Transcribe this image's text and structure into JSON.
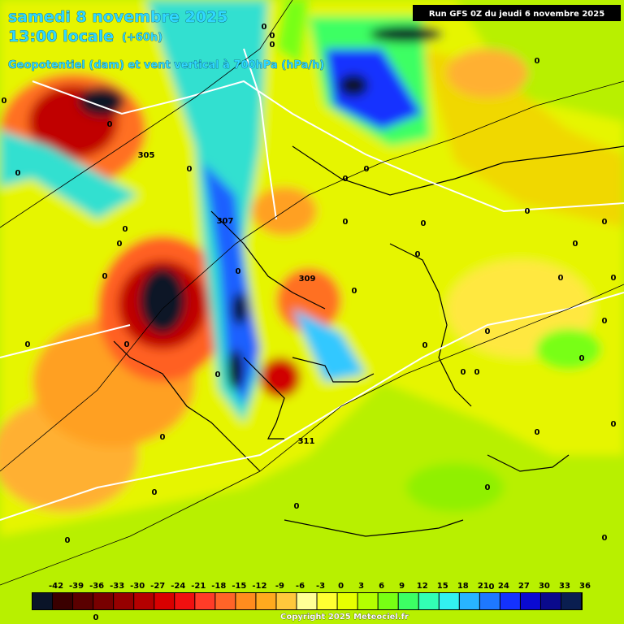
{
  "header": {
    "date": "samedi 8 novembre 2025",
    "time": "13:00 locale",
    "lead": "(+60h)",
    "field": "Geopotentiel (dam) et vent vertical à 700hPa (hPa/h)",
    "run": "Run GFS 0Z du jeudi 6 novembre 2025"
  },
  "map": {
    "labels": [
      "0",
      "0",
      "0",
      "0",
      "0",
      "0",
      "0",
      "0",
      "0",
      "0",
      "0",
      "0",
      "0",
      "0",
      "0",
      "0",
      "0",
      "0",
      "0",
      "0",
      "0",
      "0",
      "0",
      "0",
      "0",
      "0",
      "0",
      "0",
      "0",
      "0",
      "0",
      "0",
      "0",
      "0",
      "0",
      "0",
      "0",
      "0",
      "0",
      "0",
      "0",
      "0",
      "305",
      "307",
      "309",
      "311"
    ]
  },
  "legend": [
    {
      "value": -42,
      "color": "#0a1428"
    },
    {
      "value": -39,
      "color": "#3a0000"
    },
    {
      "value": -36,
      "color": "#5a0000"
    },
    {
      "value": -33,
      "color": "#780000"
    },
    {
      "value": -30,
      "color": "#960000"
    },
    {
      "value": -27,
      "color": "#b40000"
    },
    {
      "value": -24,
      "color": "#d80000"
    },
    {
      "value": -21,
      "color": "#f01010"
    },
    {
      "value": -18,
      "color": "#ff3c28"
    },
    {
      "value": -15,
      "color": "#ff6428"
    },
    {
      "value": -12,
      "color": "#ff8c1e"
    },
    {
      "value": -9,
      "color": "#ffaa1e"
    },
    {
      "value": -6,
      "color": "#ffc83c"
    },
    {
      "value": -3,
      "color": "#ffff96"
    },
    {
      "value": 0,
      "color": "#ffff32"
    },
    {
      "value": 3,
      "color": "#e6ff00"
    },
    {
      "value": 6,
      "color": "#b4ff00"
    },
    {
      "value": 9,
      "color": "#78ff14"
    },
    {
      "value": 12,
      "color": "#3cff64"
    },
    {
      "value": 15,
      "color": "#32ffb4"
    },
    {
      "value": 18,
      "color": "#32f0f0"
    },
    {
      "value": 21,
      "color": "#28b4ff"
    },
    {
      "value": 24,
      "color": "#1e78ff"
    },
    {
      "value": 27,
      "color": "#1432ff"
    },
    {
      "value": 30,
      "color": "#0a0ad2"
    },
    {
      "value": 33,
      "color": "#0a0a8c"
    },
    {
      "value": 36,
      "color": "#0a1e50"
    }
  ],
  "footer": {
    "copyright": "Copyright 2025 Meteociel.fr"
  }
}
